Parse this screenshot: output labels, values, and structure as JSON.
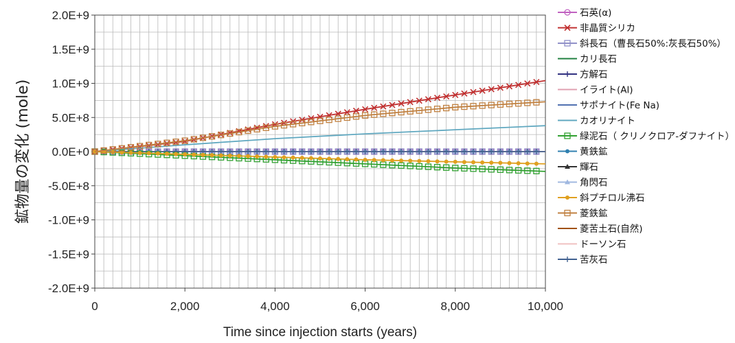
{
  "chart_data": {
    "type": "line",
    "xlabel": "Time since injection starts (years)",
    "ylabel": "鉱物量の変化 (mole)",
    "xlim": [
      0,
      10000
    ],
    "ylim": [
      -2000000000,
      2000000000
    ],
    "x_ticks": [
      "0",
      "2,000",
      "4,000",
      "6,000",
      "8,000",
      "10,000"
    ],
    "y_ticks": [
      "2.0E+9",
      "1.5E+9",
      "1.0E+9",
      "5.0E+8",
      "0.0E+0",
      "-5.0E+8",
      "-1.0E+9",
      "-1.5E+9",
      "-2.0E+9"
    ],
    "grid": true,
    "legend_position": "right",
    "series": [
      {
        "name": "石英(α)",
        "color": "#c060c0",
        "marker": "circle",
        "x": [
          0,
          10000
        ],
        "y": [
          0,
          0
        ]
      },
      {
        "name": "非晶質シリカ",
        "color": "#c03030",
        "marker": "x",
        "x": [
          0,
          2000,
          4000,
          6000,
          8000,
          10000
        ],
        "y": [
          0,
          150000000,
          400000000,
          620000000,
          830000000,
          1040000000
        ]
      },
      {
        "name": "斜長石（曹長石50%:灰長石50%）",
        "color": "#9090c8",
        "marker": "square",
        "x": [
          0,
          10000
        ],
        "y": [
          0,
          0
        ]
      },
      {
        "name": "カリ長石",
        "color": "#208040",
        "marker": "none",
        "x": [
          0,
          10000
        ],
        "y": [
          0,
          0
        ]
      },
      {
        "name": "方解石",
        "color": "#303080",
        "marker": "plus",
        "x": [
          0,
          10000
        ],
        "y": [
          0,
          0
        ]
      },
      {
        "name": "イライト(Al)",
        "color": "#e0a0b0",
        "marker": "none",
        "x": [
          0,
          10000
        ],
        "y": [
          0,
          0
        ]
      },
      {
        "name": "サポナイト(Fe Na)",
        "color": "#5070b0",
        "marker": "none",
        "x": [
          0,
          10000
        ],
        "y": [
          0,
          0
        ]
      },
      {
        "name": "カオリナイト",
        "color": "#60a8c0",
        "marker": "none",
        "x": [
          0,
          2000,
          4000,
          6000,
          8000,
          10000
        ],
        "y": [
          0,
          100000000,
          190000000,
          260000000,
          320000000,
          380000000
        ]
      },
      {
        "name": "緑泥石（ クリノクロア-ダフナイト）",
        "color": "#30a030",
        "marker": "square",
        "x": [
          0,
          2000,
          4000,
          6000,
          8000,
          10000
        ],
        "y": [
          0,
          -60000000,
          -120000000,
          -180000000,
          -240000000,
          -290000000
        ]
      },
      {
        "name": "黄鉄鉱",
        "color": "#3080b0",
        "marker": "dot",
        "x": [
          0,
          10000
        ],
        "y": [
          0,
          0
        ]
      },
      {
        "name": "輝石",
        "color": "#333333",
        "marker": "triangle",
        "x": [
          0,
          10000
        ],
        "y": [
          0,
          0
        ]
      },
      {
        "name": "角閃石",
        "color": "#a0b8e0",
        "marker": "triangle",
        "x": [
          0,
          10000
        ],
        "y": [
          0,
          0
        ]
      },
      {
        "name": "斜プチロル沸石",
        "color": "#e0a020",
        "marker": "dot",
        "x": [
          0,
          2000,
          4000,
          6000,
          8000,
          10000
        ],
        "y": [
          0,
          -40000000,
          -80000000,
          -120000000,
          -150000000,
          -180000000
        ]
      },
      {
        "name": "菱鉄鉱",
        "color": "#c08040",
        "marker": "square",
        "x": [
          0,
          2000,
          4000,
          6000,
          8000,
          10000
        ],
        "y": [
          0,
          160000000,
          370000000,
          530000000,
          650000000,
          730000000
        ]
      },
      {
        "name": "菱苦土石(自然)",
        "color": "#a05010",
        "marker": "none",
        "x": [
          0,
          10000
        ],
        "y": [
          0,
          0
        ]
      },
      {
        "name": "ドーソン石",
        "color": "#f0c0c0",
        "marker": "none",
        "x": [
          0,
          10000
        ],
        "y": [
          0,
          0
        ]
      },
      {
        "name": "苦灰石",
        "color": "#406090",
        "marker": "plus",
        "x": [
          0,
          10000
        ],
        "y": [
          0,
          0
        ]
      }
    ]
  }
}
